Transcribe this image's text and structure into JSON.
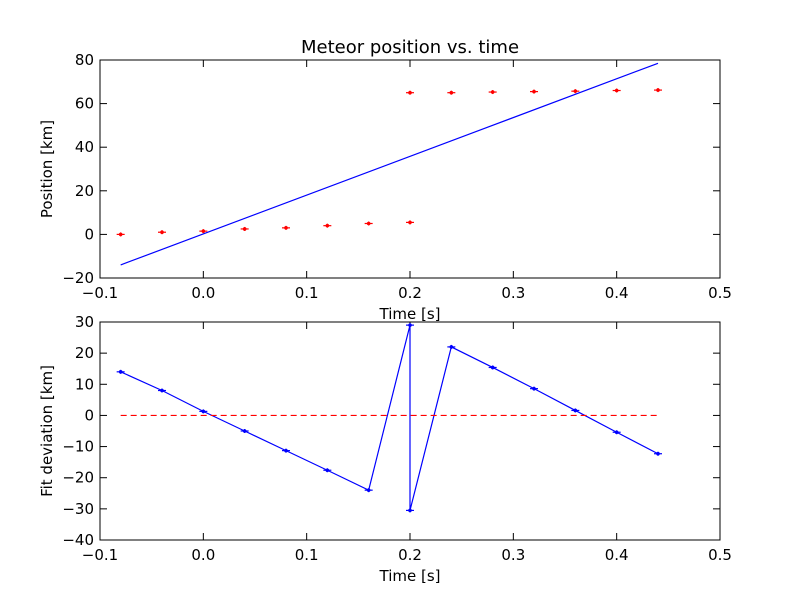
{
  "chart_data": [
    {
      "type": "scatter",
      "title": "Meteor position vs. time",
      "xlabel": "Time [s]",
      "ylabel": "Position [km]",
      "xlim": [
        -0.1,
        0.5
      ],
      "ylim": [
        -20,
        80
      ],
      "xticks": [
        "−0.1",
        "0.0",
        "0.1",
        "0.2",
        "0.3",
        "0.4",
        "0.5"
      ],
      "yticks": [
        "−20",
        "0",
        "20",
        "40",
        "60",
        "80"
      ],
      "grid": false,
      "series": [
        {
          "style": "points",
          "color": "#ff0000",
          "x": [
            -0.08,
            -0.04,
            0.0,
            0.04,
            0.08,
            0.12,
            0.16,
            0.2,
            0.2,
            0.24,
            0.28,
            0.32,
            0.36,
            0.4,
            0.44
          ],
          "y": [
            0.0,
            1.0,
            1.5,
            2.5,
            3.0,
            4.0,
            5.0,
            5.5,
            65.0,
            65.0,
            65.3,
            65.5,
            65.7,
            66.0,
            66.2
          ]
        },
        {
          "style": "line",
          "color": "#0000ff",
          "x": [
            -0.08,
            0.44
          ],
          "y": [
            -14.0,
            78.5
          ]
        }
      ]
    },
    {
      "type": "line",
      "xlabel": "Time [s]",
      "ylabel": "Fit deviation [km]",
      "xlim": [
        -0.1,
        0.5
      ],
      "ylim": [
        -40,
        30
      ],
      "xticks": [
        "−0.1",
        "0.0",
        "0.1",
        "0.2",
        "0.3",
        "0.4",
        "0.5"
      ],
      "yticks": [
        "−40",
        "−30",
        "−20",
        "−10",
        "0",
        "10",
        "20",
        "30"
      ],
      "grid": false,
      "series": [
        {
          "style": "line-markers",
          "color": "#0000ff",
          "x": [
            -0.08,
            -0.04,
            0.0,
            0.04,
            0.08,
            0.12,
            0.16,
            0.2,
            0.2,
            0.24,
            0.28,
            0.32,
            0.36,
            0.4,
            0.44
          ],
          "y": [
            14.0,
            8.0,
            1.3,
            -5.0,
            -11.3,
            -17.6,
            -24.0,
            29.0,
            -30.5,
            22.0,
            15.4,
            8.6,
            1.6,
            -5.4,
            -12.3
          ]
        },
        {
          "style": "dashed",
          "color": "#ff0000",
          "x": [
            -0.08,
            0.44
          ],
          "y": [
            0,
            0
          ]
        }
      ]
    }
  ]
}
